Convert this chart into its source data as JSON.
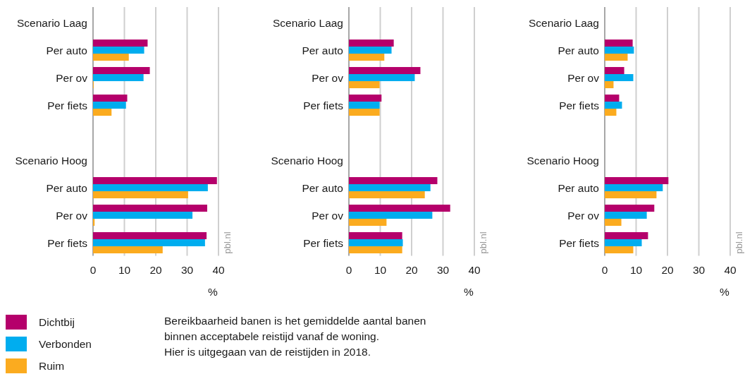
{
  "chart_data": [
    {
      "type": "bar",
      "orientation": "horizontal",
      "categories": [
        "Scenario Laag",
        "Per auto",
        "Per ov",
        "Per fiets",
        null,
        "Scenario Hoog",
        "Per auto",
        "Per ov",
        "Per fiets"
      ],
      "series": [
        {
          "name": "Dichtbij",
          "color": "#b5006b",
          "values": [
            null,
            17.4,
            18.1,
            10.9,
            null,
            null,
            39.5,
            36.4,
            36.2
          ]
        },
        {
          "name": "Verbonden",
          "color": "#00adef",
          "values": [
            null,
            16.3,
            16.1,
            10.5,
            null,
            null,
            36.6,
            31.7,
            35.7
          ]
        },
        {
          "name": "Ruim",
          "color": "#fbab1f",
          "values": [
            null,
            11.4,
            0.2,
            5.9,
            null,
            null,
            30.3,
            0.5,
            22.2
          ]
        }
      ],
      "xlim": [
        0,
        40
      ],
      "xticks": [
        0,
        10,
        20,
        30,
        40
      ],
      "xlabel": "%",
      "grid": "x",
      "legend": "bottom left",
      "annotations": [
        "pbl.nl"
      ]
    },
    {
      "type": "bar",
      "orientation": "horizontal",
      "categories": [
        "Scenario Laag",
        "Per auto",
        "Per ov",
        "Per fiets",
        null,
        "Scenario Hoog",
        "Per auto",
        "Per ov",
        "Per fiets"
      ],
      "series": [
        {
          "color": "#b5006b",
          "values": [
            null,
            14.3,
            22.8,
            10.4,
            null,
            null,
            28.2,
            32.3,
            17.0
          ]
        },
        {
          "color": "#00adef",
          "values": [
            null,
            13.6,
            21.0,
            9.8,
            null,
            null,
            26.0,
            26.6,
            17.2
          ]
        },
        {
          "color": "#fbab1f",
          "values": [
            null,
            11.3,
            9.8,
            9.8,
            null,
            null,
            24.2,
            12.0,
            17.0
          ]
        }
      ],
      "xlim": [
        0,
        40
      ],
      "xticks": [
        0,
        10,
        20,
        30,
        40
      ],
      "xlabel": "%",
      "grid": "x",
      "annotations": [
        "pbl.nl"
      ]
    },
    {
      "type": "bar",
      "orientation": "horizontal",
      "categories": [
        "Scenario Laag",
        "Per auto",
        "Per ov",
        "Per fiets",
        null,
        "Scenario Hoog",
        "Per auto",
        "Per ov",
        "Per fiets"
      ],
      "series": [
        {
          "color": "#b5006b",
          "values": [
            null,
            8.9,
            6.2,
            4.6,
            null,
            null,
            20.3,
            15.8,
            13.8
          ]
        },
        {
          "color": "#00adef",
          "values": [
            null,
            9.3,
            9.1,
            5.5,
            null,
            null,
            18.5,
            13.4,
            11.8
          ]
        },
        {
          "color": "#fbab1f",
          "values": [
            null,
            7.3,
            2.8,
            3.7,
            null,
            null,
            16.5,
            5.3,
            9.1
          ]
        }
      ],
      "xlim": [
        0,
        40
      ],
      "xticks": [
        0,
        10,
        20,
        30,
        40
      ],
      "xlabel": "%",
      "grid": "x",
      "annotations": [
        "pbl.nl"
      ]
    },
    {
      "type": "other",
      "annotations": [
        "Bereikbaarheid banen is het gemiddelde aantal banen binnen acceptabele reistijd vanaf de woning.",
        "Hier is uitgegaan van de reistijden in 2018."
      ]
    }
  ]
}
